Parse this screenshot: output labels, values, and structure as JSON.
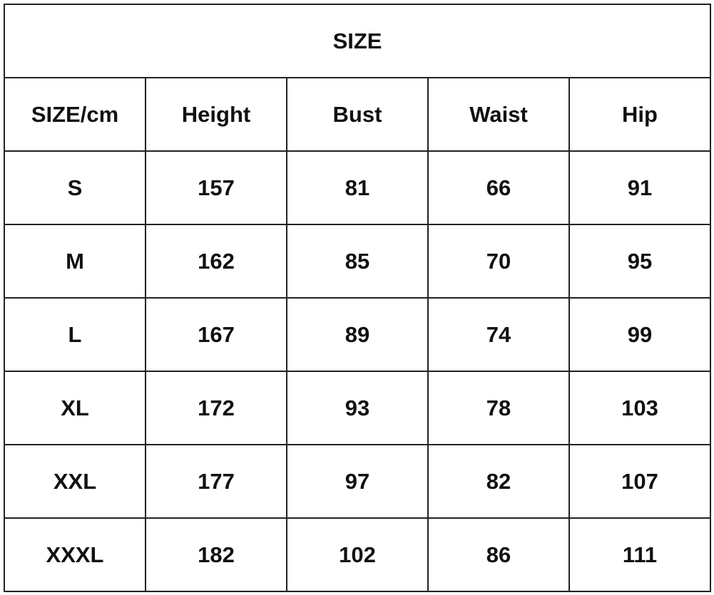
{
  "title": "SIZE",
  "headers": [
    "SIZE/cm",
    "Height",
    "Bust",
    "Waist",
    "Hip"
  ],
  "rows": [
    [
      "S",
      "157",
      "81",
      "66",
      "91"
    ],
    [
      "M",
      "162",
      "85",
      "70",
      "95"
    ],
    [
      "L",
      "167",
      "89",
      "74",
      "99"
    ],
    [
      "XL",
      "172",
      "93",
      "78",
      "103"
    ],
    [
      "XXL",
      "177",
      "97",
      "82",
      "107"
    ],
    [
      "XXXL",
      "182",
      "102",
      "86",
      "111"
    ]
  ]
}
